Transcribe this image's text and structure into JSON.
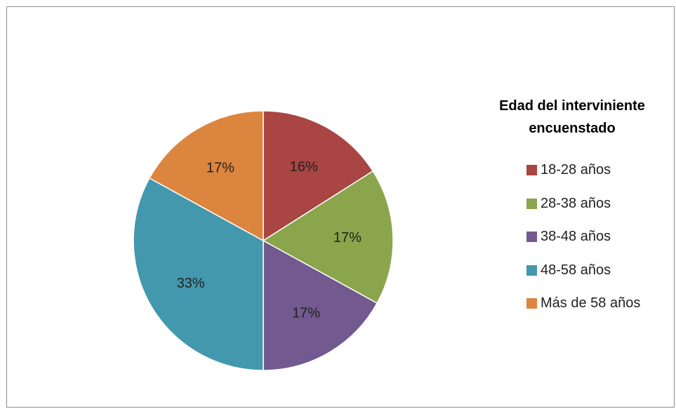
{
  "chart_data": {
    "type": "pie",
    "title": "Edad del interviniente encuenstado",
    "categories": [
      "18-28 años",
      "28-38 años",
      "38-48 años",
      "48-58 años",
      "Más de 58 años"
    ],
    "values": [
      16,
      17,
      17,
      33,
      17
    ],
    "labels": [
      "16%",
      "17%",
      "17%",
      "33%",
      "17%"
    ],
    "colors": [
      "#a94543",
      "#8aa54b",
      "#725990",
      "#4398ae",
      "#dc853f"
    ],
    "legend": "right"
  }
}
